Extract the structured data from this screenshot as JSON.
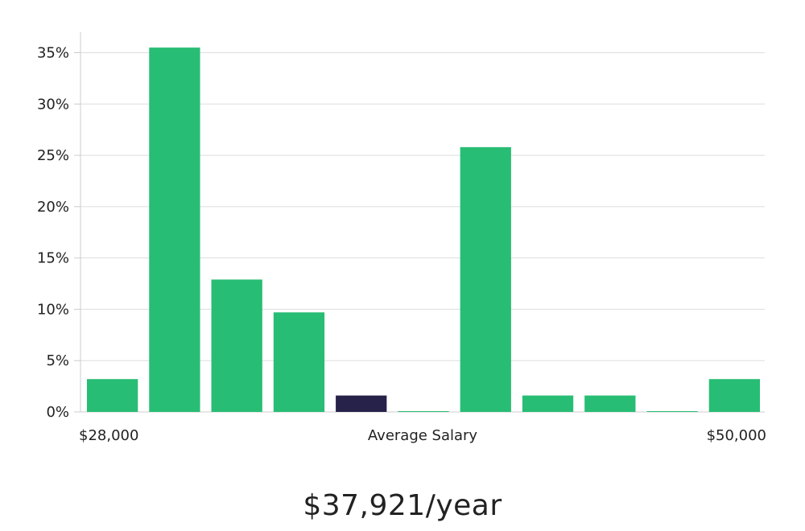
{
  "chart_data": {
    "type": "bar",
    "values": [
      3.2,
      35.5,
      12.9,
      9.7,
      1.6,
      0.05,
      25.8,
      1.6,
      1.6,
      0.05,
      3.2
    ],
    "highlight_index": 4,
    "bar_color": "#28bd74",
    "highlight_color": "#26224a",
    "ylim": [
      0,
      37
    ],
    "yticks": [
      {
        "value": 0,
        "label": "0%"
      },
      {
        "value": 5,
        "label": "5%"
      },
      {
        "value": 10,
        "label": "10%"
      },
      {
        "value": 15,
        "label": "15%"
      },
      {
        "value": 20,
        "label": "20%"
      },
      {
        "value": 25,
        "label": "25%"
      },
      {
        "value": 30,
        "label": "30%"
      },
      {
        "value": 35,
        "label": "35%"
      }
    ],
    "x_min_label": "$28,000",
    "xlabel": "Average Salary",
    "x_max_label": "$50,000",
    "grid": true
  },
  "summary": {
    "average_salary": "$37,921/year"
  }
}
